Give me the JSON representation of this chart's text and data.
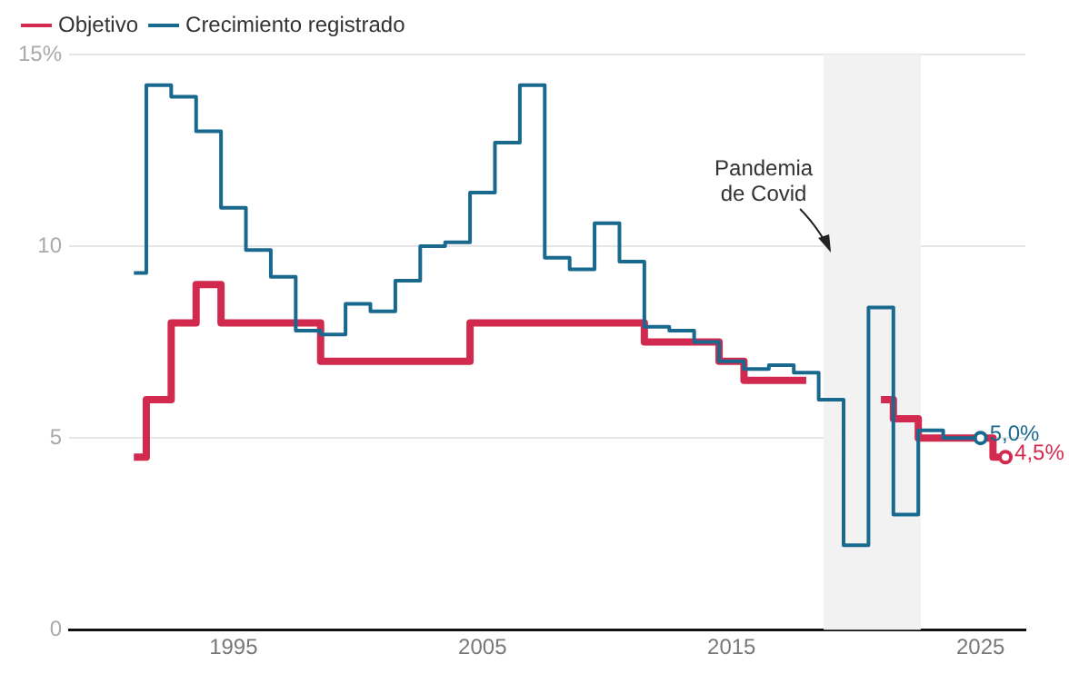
{
  "chart_data": {
    "type": "step",
    "x": [
      1991,
      1992,
      1993,
      1994,
      1995,
      1996,
      1997,
      1998,
      1999,
      2000,
      2001,
      2002,
      2003,
      2004,
      2005,
      2006,
      2007,
      2008,
      2009,
      2010,
      2011,
      2012,
      2013,
      2014,
      2015,
      2016,
      2017,
      2018,
      2019,
      2020,
      2021,
      2022,
      2023,
      2024,
      2025,
      2026
    ],
    "series": [
      {
        "name": "Objetivo",
        "color": "#d22a4f",
        "values": [
          4.5,
          6.0,
          8.0,
          9.0,
          8.0,
          8.0,
          8.0,
          8.0,
          7.0,
          7.0,
          7.0,
          7.0,
          7.0,
          7.0,
          8.0,
          8.0,
          8.0,
          8.0,
          8.0,
          8.0,
          8.0,
          7.5,
          7.5,
          7.5,
          7.0,
          6.5,
          6.5,
          6.5,
          null,
          null,
          6.0,
          5.5,
          5.0,
          5.0,
          5.0,
          4.5
        ],
        "value_labels": [
          null,
          null,
          null,
          null,
          null,
          null,
          null,
          null,
          null,
          null,
          null,
          null,
          null,
          null,
          null,
          null,
          null,
          null,
          null,
          null,
          null,
          null,
          null,
          null,
          null,
          null,
          null,
          null,
          null,
          null,
          null,
          null,
          null,
          null,
          null,
          "4,5%"
        ]
      },
      {
        "name": "Crecimiento registrado",
        "color": "#19698f",
        "values": [
          9.3,
          14.2,
          13.9,
          13.0,
          11.0,
          9.9,
          9.2,
          7.8,
          7.7,
          8.5,
          8.3,
          9.1,
          10.0,
          10.1,
          11.4,
          12.7,
          14.2,
          9.7,
          9.4,
          10.6,
          9.6,
          7.9,
          7.8,
          7.5,
          7.0,
          6.8,
          6.9,
          6.7,
          6.0,
          2.2,
          8.4,
          3.0,
          5.2,
          5.0,
          5.0,
          null
        ],
        "value_labels": [
          null,
          null,
          null,
          null,
          null,
          null,
          null,
          null,
          null,
          null,
          null,
          null,
          null,
          null,
          null,
          null,
          null,
          null,
          null,
          null,
          null,
          null,
          null,
          null,
          null,
          null,
          null,
          null,
          null,
          null,
          null,
          null,
          null,
          null,
          "5,0%",
          null
        ]
      }
    ],
    "xlim": [
      1988.4,
      2026.8
    ],
    "xticks": [
      1995,
      2005,
      2015,
      2025
    ],
    "ylim": [
      0,
      15
    ],
    "yticks": [
      0,
      5,
      10,
      {
        "value": 15,
        "label": "15%"
      }
    ],
    "grid": "y",
    "legend": "top left",
    "marker": "none",
    "line_style": "solid",
    "bands": [
      {
        "axis": "x",
        "from": 2018.7,
        "to": 2022.6,
        "label": "Pandemia de Covid",
        "color": "#f2f2f2"
      }
    ]
  }
}
